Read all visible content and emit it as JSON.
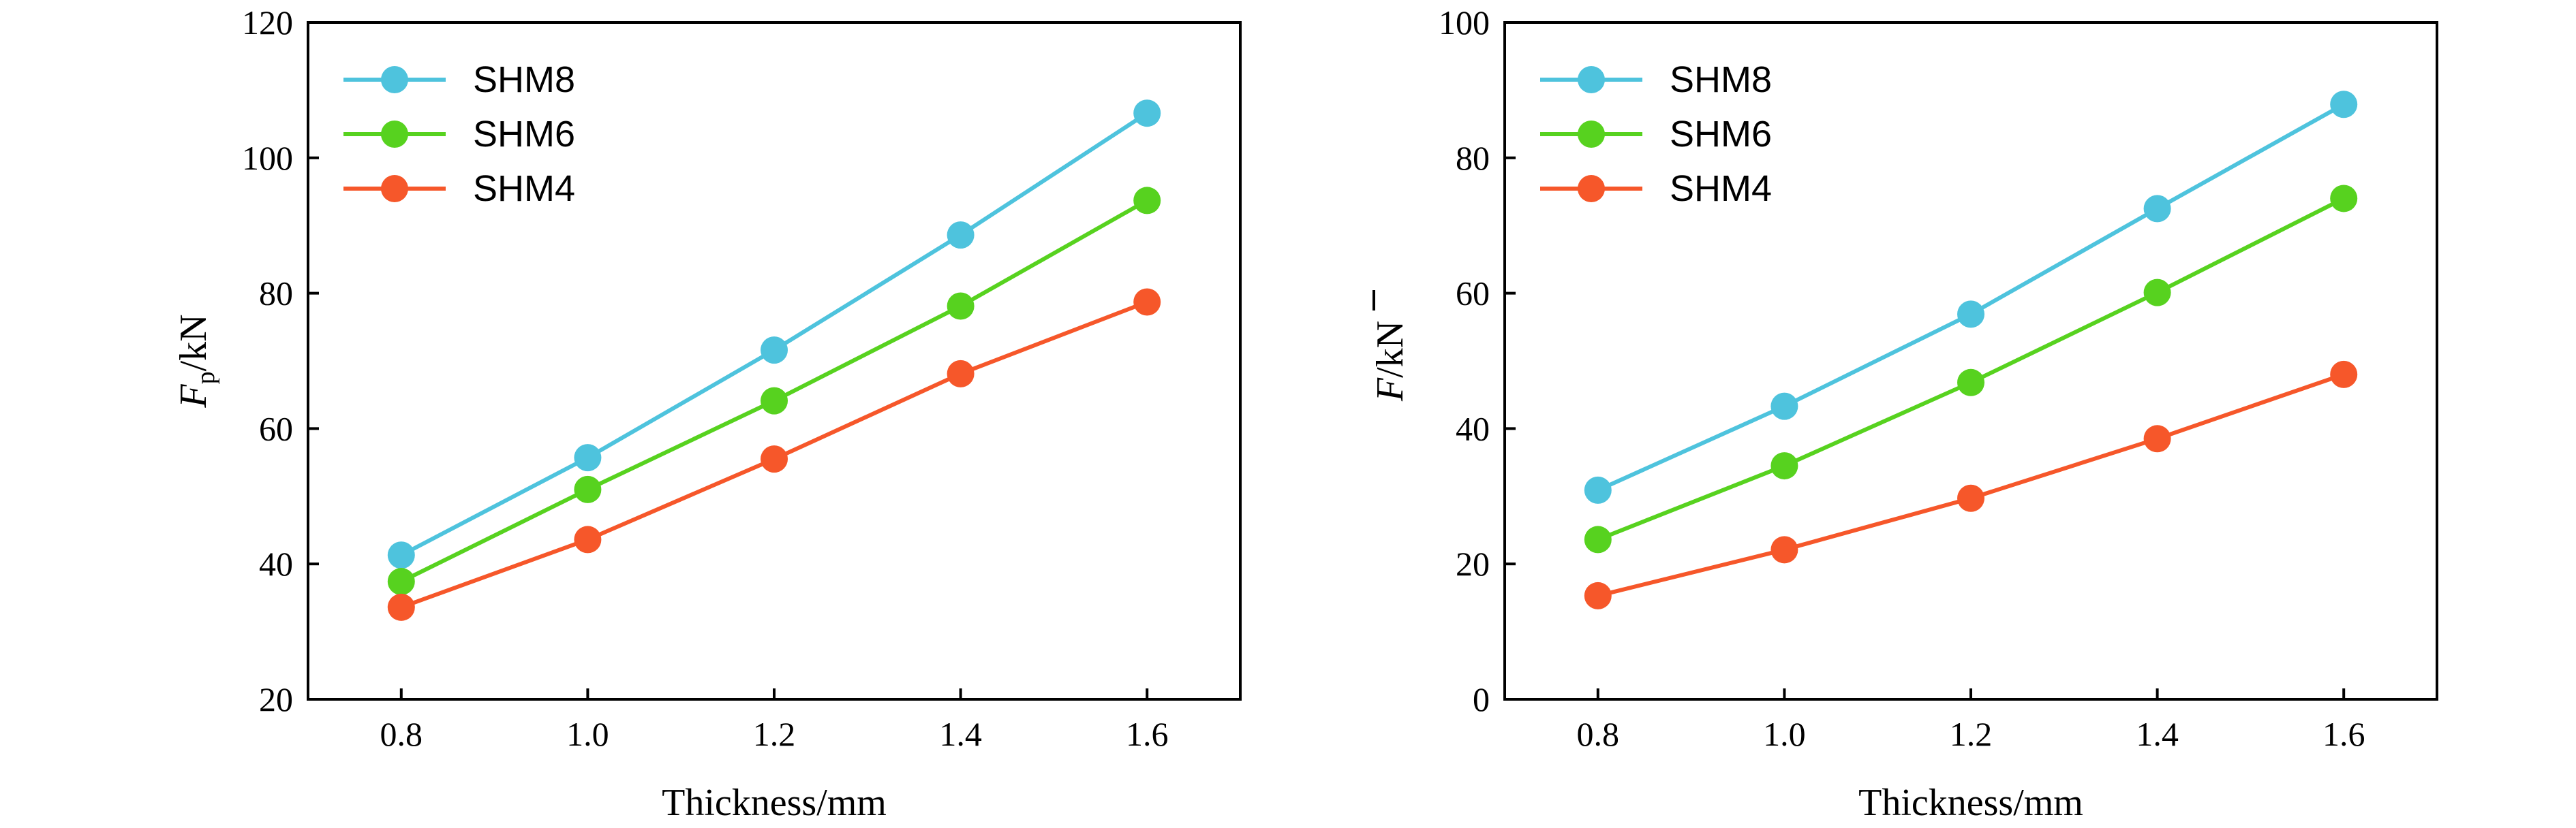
{
  "chart_data": [
    {
      "type": "line",
      "x": [
        0.8,
        1.0,
        1.2,
        1.4,
        1.6
      ],
      "xlabel": "Thickness/mm",
      "ylabel": {
        "main": "F",
        "sub": "p",
        "rest": "/kN"
      },
      "xlim": [
        0.7,
        1.7
      ],
      "ylim": [
        20,
        120
      ],
      "xticks": [
        "0.8",
        "1.0",
        "1.2",
        "1.4",
        "1.6"
      ],
      "yticks": [
        "20",
        "40",
        "60",
        "80",
        "100",
        "120"
      ],
      "grid": false,
      "legend_position": "top-left",
      "series": [
        {
          "name": "SHM8",
          "color": "#4ec3dd",
          "values": [
            41.3,
            55.7,
            71.6,
            88.6,
            106.6
          ]
        },
        {
          "name": "SHM6",
          "color": "#57d21f",
          "values": [
            37.4,
            51.0,
            64.1,
            78.1,
            93.7
          ]
        },
        {
          "name": "SHM4",
          "color": "#f6572a",
          "values": [
            33.6,
            43.6,
            55.5,
            68.1,
            78.7
          ]
        }
      ]
    },
    {
      "type": "line",
      "x": [
        0.8,
        1.0,
        1.2,
        1.4,
        1.6
      ],
      "xlabel": "Thickness/mm",
      "ylabel": {
        "main": "F",
        "bar": true,
        "rest": "/kN"
      },
      "xlim": [
        0.7,
        1.7
      ],
      "ylim": [
        0,
        100
      ],
      "xticks": [
        "0.8",
        "1.0",
        "1.2",
        "1.4",
        "1.6"
      ],
      "yticks": [
        "0",
        "20",
        "40",
        "60",
        "80",
        "100"
      ],
      "grid": false,
      "legend_position": "top-left",
      "series": [
        {
          "name": "SHM8",
          "color": "#4ec3dd",
          "values": [
            30.9,
            43.3,
            56.9,
            72.5,
            87.9
          ]
        },
        {
          "name": "SHM6",
          "color": "#57d21f",
          "values": [
            23.6,
            34.5,
            46.8,
            60.1,
            74.0
          ]
        },
        {
          "name": "SHM4",
          "color": "#f6572a",
          "values": [
            15.3,
            22.1,
            29.7,
            38.5,
            48.0
          ]
        }
      ]
    }
  ]
}
